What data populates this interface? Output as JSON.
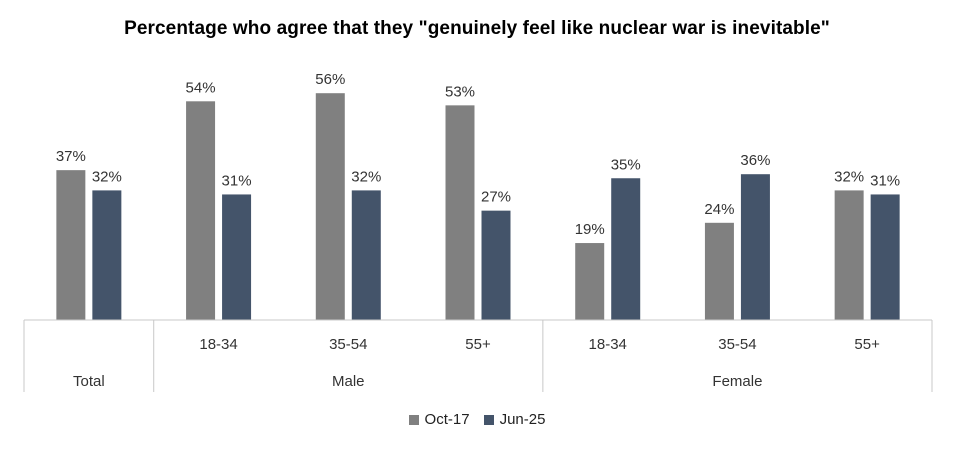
{
  "chart_data": {
    "type": "bar",
    "title": "Percentage who agree that they \"genuinely feel like nuclear war is inevitable\"",
    "categories": [
      "Total",
      "18-34",
      "35-54",
      "55+",
      "18-34",
      "35-54",
      "55+"
    ],
    "groups": [
      {
        "label": "Total",
        "categories": [
          ""
        ]
      },
      {
        "label": "Male",
        "categories": [
          "18-34",
          "35-54",
          "55+"
        ]
      },
      {
        "label": "Female",
        "categories": [
          "18-34",
          "35-54",
          "55+"
        ]
      }
    ],
    "series": [
      {
        "name": "Oct-17",
        "color": "#808080",
        "values": [
          37,
          54,
          56,
          53,
          19,
          24,
          32
        ],
        "labels": [
          "37%",
          "54%",
          "56%",
          "53%",
          "19%",
          "24%",
          "32%"
        ]
      },
      {
        "name": "Jun-25",
        "color": "#44546a",
        "values": [
          32,
          31,
          32,
          27,
          35,
          36,
          31
        ],
        "labels": [
          "32%",
          "31%",
          "32%",
          "27%",
          "35%",
          "36%",
          "31%"
        ]
      }
    ],
    "ylim": [
      0,
      60
    ],
    "legend_position": "bottom",
    "grid": false
  }
}
